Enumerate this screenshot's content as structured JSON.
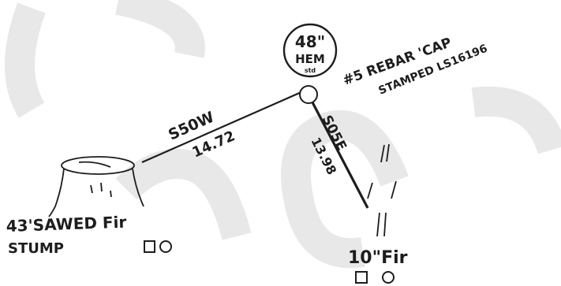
{
  "circle_label": {
    "line1": "48\"",
    "line2": "HEM",
    "line3": "std"
  },
  "monument_note": {
    "line1": "#5 REBAR 'CAP",
    "line2": "STAMPED LS16196"
  },
  "lines": [
    {
      "bearing": "S50W",
      "distance": "14.72"
    },
    {
      "bearing": "S05E",
      "distance": "13.98"
    }
  ],
  "stump_label": {
    "line1": "43'SAWED Fir",
    "line2": "STUMP"
  },
  "tree_label": "10\"Fir",
  "colors": {
    "ink": "#1d1d1d",
    "watermark": "#e8e8e8"
  }
}
